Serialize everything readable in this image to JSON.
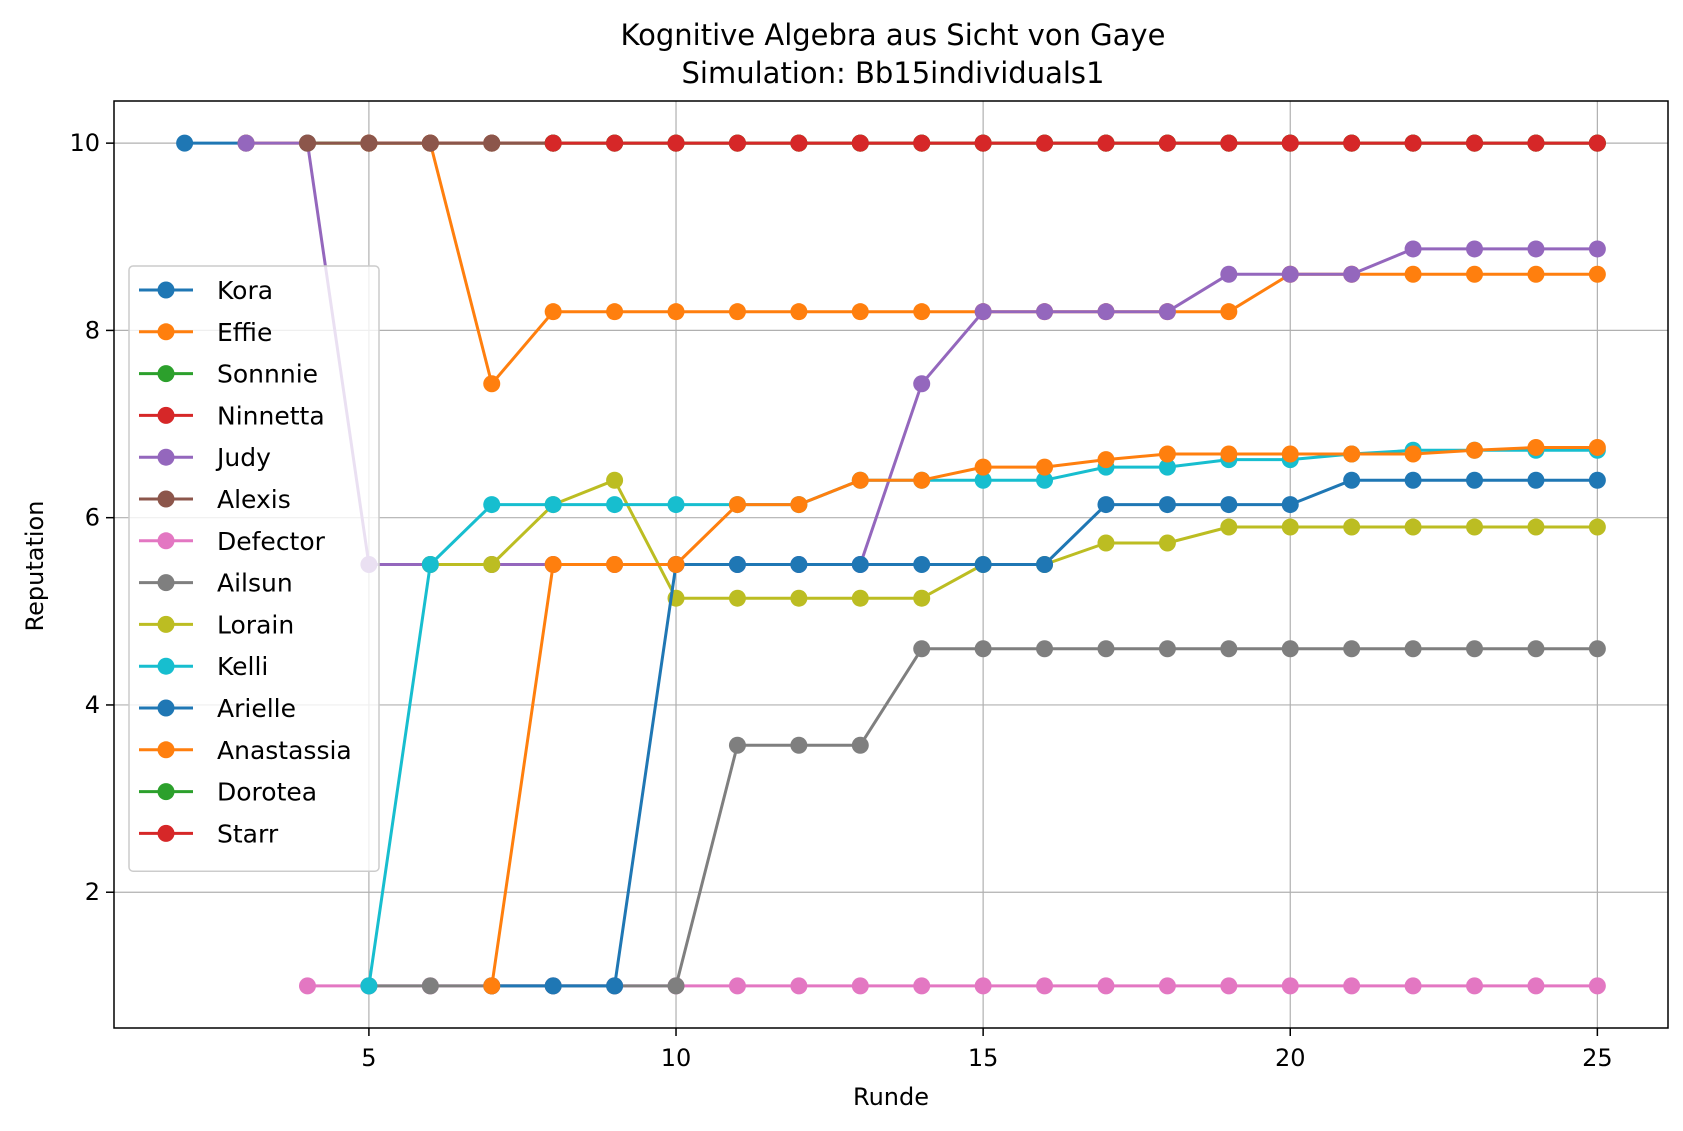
{
  "chart_data": {
    "type": "line",
    "title": "Kognitive Algebra aus Sicht von Gaye",
    "subtitle": "Simulation: Bb15individuals1",
    "xlabel": "Runde",
    "ylabel": "Reputation",
    "xlim": [
      0.85,
      26.15
    ],
    "ylim": [
      0.55,
      10.45
    ],
    "xticks": [
      5,
      10,
      15,
      20,
      25
    ],
    "yticks": [
      2,
      4,
      6,
      8,
      10
    ],
    "grid": true,
    "legend_position": "center-left",
    "series": [
      {
        "name": "Kora",
        "color": "#1f77b4",
        "x": [
          2,
          3
        ],
        "y": [
          10,
          10
        ]
      },
      {
        "name": "Effie",
        "color": "#ff7f0e",
        "x": [
          3,
          4,
          5,
          6,
          7,
          8,
          9,
          10,
          11,
          12,
          13,
          14,
          15,
          16,
          17,
          18,
          19,
          20,
          21,
          22,
          23,
          24,
          25
        ],
        "y": [
          10,
          10,
          10,
          10,
          7.43,
          8.2,
          8.2,
          8.2,
          8.2,
          8.2,
          8.2,
          8.2,
          8.2,
          8.2,
          8.2,
          8.2,
          8.2,
          8.6,
          8.6,
          8.6,
          8.6,
          8.6,
          8.6
        ]
      },
      {
        "name": "Sonnnie",
        "color": "#2ca02c",
        "x": [
          4,
          5,
          6,
          7,
          8,
          9,
          10,
          11,
          12,
          13,
          14,
          15,
          16,
          17,
          18,
          19,
          20,
          21,
          22,
          23,
          24,
          25
        ],
        "y": [
          10,
          10,
          10,
          10,
          10,
          10,
          10,
          10,
          10,
          10,
          10,
          10,
          10,
          10,
          10,
          10,
          10,
          10,
          10,
          10,
          10,
          10
        ]
      },
      {
        "name": "Ninnetta",
        "color": "#d62728",
        "x": [
          5,
          6,
          7,
          8,
          9,
          10,
          11,
          12,
          13,
          14,
          15,
          16,
          17,
          18,
          19,
          20,
          21,
          22,
          23,
          24,
          25
        ],
        "y": [
          10,
          10,
          10,
          10,
          10,
          10,
          10,
          10,
          10,
          10,
          10,
          10,
          10,
          10,
          10,
          10,
          10,
          10,
          10,
          10,
          10
        ]
      },
      {
        "name": "Judy",
        "color": "#9467bd",
        "x": [
          3,
          4,
          5,
          6,
          7,
          8,
          9,
          10,
          11,
          12,
          13,
          14,
          15,
          16,
          17,
          18,
          19,
          20,
          21,
          22,
          23,
          24,
          25
        ],
        "y": [
          10,
          10,
          5.5,
          5.5,
          5.5,
          5.5,
          5.5,
          5.5,
          5.5,
          5.5,
          5.5,
          7.43,
          8.2,
          8.2,
          8.2,
          8.2,
          8.6,
          8.6,
          8.6,
          8.87,
          8.87,
          8.87,
          8.87
        ]
      },
      {
        "name": "Alexis",
        "color": "#8c564b",
        "x": [
          4,
          5,
          6,
          7,
          8
        ],
        "y": [
          10,
          10,
          10,
          10,
          10
        ]
      },
      {
        "name": "Defector",
        "color": "#e377c2",
        "x": [
          4,
          5,
          6,
          7,
          8,
          9,
          10,
          11,
          12,
          13,
          14,
          15,
          16,
          17,
          18,
          19,
          20,
          21,
          22,
          23,
          24,
          25
        ],
        "y": [
          1,
          1,
          1,
          1,
          1,
          1,
          1,
          1,
          1,
          1,
          1,
          1,
          1,
          1,
          1,
          1,
          1,
          1,
          1,
          1,
          1,
          1
        ]
      },
      {
        "name": "Ailsun",
        "color": "#7f7f7f",
        "x": [
          5,
          6,
          7,
          8,
          9,
          10,
          11,
          12,
          13,
          14,
          15,
          16,
          17,
          18,
          19,
          20,
          21,
          22,
          23,
          24,
          25
        ],
        "y": [
          1,
          1,
          1,
          1,
          1,
          1,
          3.57,
          3.57,
          3.57,
          4.6,
          4.6,
          4.6,
          4.6,
          4.6,
          4.6,
          4.6,
          4.6,
          4.6,
          4.6,
          4.6,
          4.6
        ]
      },
      {
        "name": "Lorain",
        "color": "#bcbd22",
        "x": [
          6,
          7,
          8,
          9,
          10,
          11,
          12,
          13,
          14,
          15,
          16,
          17,
          18,
          19,
          20,
          21,
          22,
          23,
          24,
          25
        ],
        "y": [
          5.5,
          5.5,
          6.14,
          6.4,
          5.14,
          5.14,
          5.14,
          5.14,
          5.14,
          5.5,
          5.5,
          5.73,
          5.73,
          5.9,
          5.9,
          5.9,
          5.9,
          5.9,
          5.9,
          5.9
        ]
      },
      {
        "name": "Kelli",
        "color": "#17becf",
        "x": [
          5,
          6,
          7,
          8,
          9,
          10,
          11,
          12,
          13,
          14,
          15,
          16,
          17,
          18,
          19,
          20,
          21,
          22,
          23,
          24,
          25
        ],
        "y": [
          1,
          5.5,
          6.14,
          6.14,
          6.14,
          6.14,
          6.14,
          6.14,
          6.4,
          6.4,
          6.4,
          6.4,
          6.54,
          6.54,
          6.62,
          6.62,
          6.68,
          6.72,
          6.72,
          6.72,
          6.72
        ]
      },
      {
        "name": "Arielle",
        "color": "#1f77b4",
        "x": [
          7,
          8,
          9,
          10,
          11,
          12,
          13,
          14,
          15,
          16,
          17,
          18,
          19,
          20,
          21,
          22,
          23,
          24,
          25
        ],
        "y": [
          1,
          1,
          1,
          5.5,
          5.5,
          5.5,
          5.5,
          5.5,
          5.5,
          5.5,
          6.14,
          6.14,
          6.14,
          6.14,
          6.4,
          6.4,
          6.4,
          6.4,
          6.4
        ]
      },
      {
        "name": "Anastassia",
        "color": "#ff7f0e",
        "x": [
          7,
          8,
          9,
          10,
          11,
          12,
          13,
          14,
          15,
          16,
          17,
          18,
          19,
          20,
          21,
          22,
          23,
          24,
          25
        ],
        "y": [
          1,
          5.5,
          5.5,
          5.5,
          6.14,
          6.14,
          6.4,
          6.4,
          6.54,
          6.54,
          6.62,
          6.68,
          6.68,
          6.68,
          6.68,
          6.68,
          6.72,
          6.75,
          6.75
        ]
      },
      {
        "name": "Dorotea",
        "color": "#2ca02c",
        "x": [
          8,
          9,
          10,
          11,
          12,
          13,
          14,
          15,
          16,
          17,
          18,
          19,
          20,
          21,
          22,
          23,
          24,
          25
        ],
        "y": [
          10,
          10,
          10,
          10,
          10,
          10,
          10,
          10,
          10,
          10,
          10,
          10,
          10,
          10,
          10,
          10,
          10,
          10
        ]
      },
      {
        "name": "Starr",
        "color": "#d62728",
        "x": [
          8,
          9,
          10,
          11,
          12,
          13,
          14,
          15,
          16,
          17,
          18,
          19,
          20,
          21,
          22,
          23,
          24,
          25
        ],
        "y": [
          10,
          10,
          10,
          10,
          10,
          10,
          10,
          10,
          10,
          10,
          10,
          10,
          10,
          10,
          10,
          10,
          10,
          10
        ]
      }
    ]
  }
}
